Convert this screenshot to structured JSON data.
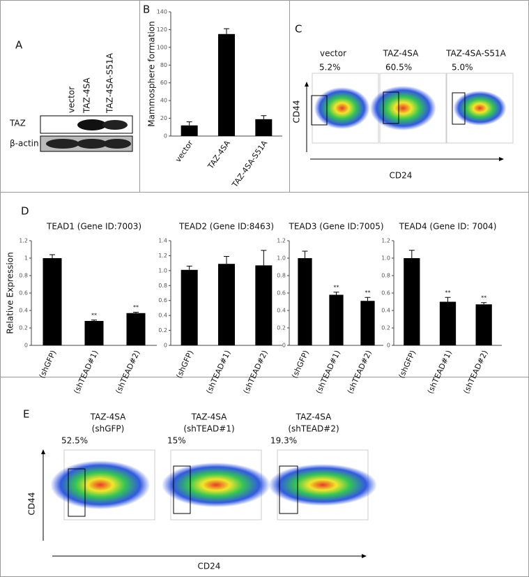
{
  "panels": {
    "A": {
      "label": "A",
      "lanes": [
        "vector",
        "TAZ-4SA",
        "TAZ-4SA-S51A"
      ],
      "rows": [
        "TAZ",
        "β-actin"
      ]
    },
    "C": {
      "label": "C",
      "groups": [
        "vector",
        "TAZ-4SA",
        "TAZ-4SA-S51A"
      ],
      "percents": [
        "5.2%",
        "60.5%",
        "5.0%"
      ],
      "y_axis": "CD44",
      "x_axis": "CD24"
    },
    "E": {
      "label": "E",
      "groups": [
        [
          "TAZ-4SA",
          "(shGFP)"
        ],
        [
          "TAZ-4SA",
          "(shTEAD#1)"
        ],
        [
          "TAZ-4SA",
          "(shTEAD#2)"
        ]
      ],
      "percents": [
        "52.5%",
        "15%",
        "19.3%"
      ],
      "y_axis": "CD44",
      "x_axis": "CD24"
    }
  },
  "chart_data": [
    {
      "type": "bar",
      "panel_label": "B",
      "ylabel": "Mammosphere formation",
      "categories": [
        "vector",
        "TAZ-4SA",
        "TAZ-4SA-S51A"
      ],
      "values": [
        12,
        115,
        19
      ],
      "errors": [
        4,
        6,
        4
      ],
      "color": "#000000",
      "ylim": [
        0,
        140
      ],
      "yticks": [
        0,
        20,
        40,
        60,
        80,
        100,
        120,
        140
      ]
    },
    {
      "type": "bar",
      "panel_label": "D",
      "title": "TEAD1 (Gene ID:7003)",
      "ylabel": "Relative Expression",
      "categories": [
        "(shGFP)",
        "(shTEAD#1)",
        "(shTEAD#2)"
      ],
      "values": [
        1.0,
        0.28,
        0.37
      ],
      "errors": [
        0.04,
        0.01,
        0.01
      ],
      "significance": [
        null,
        "**",
        "**"
      ],
      "color": "#000000",
      "ylim": [
        0,
        1.2
      ],
      "yticks": [
        0,
        0.2,
        0.4,
        0.6,
        0.8,
        1,
        1.2
      ]
    },
    {
      "type": "bar",
      "title": "TEAD2 (Gene ID:8463)",
      "categories": [
        "(shGFP)",
        "(shTEAD#1)",
        "(shTEAD#2)"
      ],
      "values": [
        1.01,
        1.09,
        1.07
      ],
      "errors": [
        0.05,
        0.1,
        0.2
      ],
      "color": "#000000",
      "ylim": [
        0,
        1.4
      ],
      "yticks": [
        0,
        0.2,
        0.4,
        0.6,
        0.8,
        {
          "value": 1,
          "label": "1.0"
        },
        1.2,
        1.4
      ]
    },
    {
      "type": "bar",
      "title": "TEAD3 (Gene ID:7005)",
      "categories": [
        "(shGFP)",
        "(shTEAD#1)",
        "(shTEAD#2)"
      ],
      "values": [
        1.0,
        0.58,
        0.51
      ],
      "errors": [
        0.08,
        0.03,
        0.04
      ],
      "significance": [
        null,
        "**",
        "**"
      ],
      "color": "#000000",
      "ylim": [
        0,
        1.2
      ],
      "yticks": [
        0,
        0.2,
        0.4,
        0.6,
        0.8,
        {
          "value": 1,
          "label": "1.0"
        },
        1.2
      ]
    },
    {
      "type": "bar",
      "title": "TEAD4 (Gene ID: 7004)",
      "categories": [
        "(shGFP)",
        "(shTEAD#1)",
        "(shTEAD#2)"
      ],
      "values": [
        1.0,
        0.5,
        0.47
      ],
      "errors": [
        0.09,
        0.05,
        0.02
      ],
      "significance": [
        null,
        "**",
        "**"
      ],
      "color": "#000000",
      "ylim": [
        0,
        1.2
      ],
      "yticks": [
        0,
        0.2,
        0.4,
        0.6,
        0.8,
        {
          "value": 1,
          "label": "1.0"
        },
        1.2
      ]
    }
  ]
}
